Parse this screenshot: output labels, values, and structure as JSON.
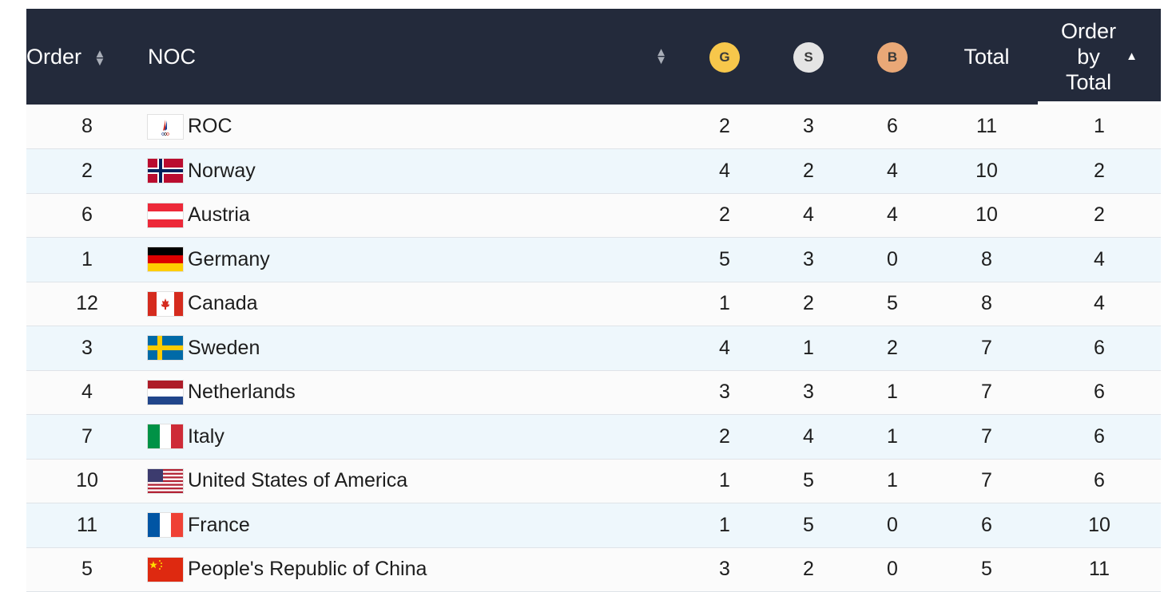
{
  "header": {
    "order": "Order",
    "noc": "NOC",
    "gold": "G",
    "silver": "S",
    "bronze": "B",
    "total": "Total",
    "order_by_total": [
      "Order",
      "by",
      "Total"
    ],
    "sort_icon": "sort-both-icon",
    "active_sort_icon": "sort-ascending-icon"
  },
  "colors": {
    "header_bg": "#232a3b",
    "gold": "#f7c74b",
    "silver": "#e4e4e4",
    "bronze": "#e9a877",
    "row_odd": "#fbfbfb",
    "row_even": "#eef7fc"
  },
  "rows": [
    {
      "order": "8",
      "flag": "roc-flag",
      "noc": "ROC",
      "gold": "2",
      "silver": "3",
      "bronze": "6",
      "total": "11",
      "order_by_total": "1"
    },
    {
      "order": "2",
      "flag": "norway-flag",
      "noc": "Norway",
      "gold": "4",
      "silver": "2",
      "bronze": "4",
      "total": "10",
      "order_by_total": "2"
    },
    {
      "order": "6",
      "flag": "austria-flag",
      "noc": "Austria",
      "gold": "2",
      "silver": "4",
      "bronze": "4",
      "total": "10",
      "order_by_total": "2"
    },
    {
      "order": "1",
      "flag": "germany-flag",
      "noc": "Germany",
      "gold": "5",
      "silver": "3",
      "bronze": "0",
      "total": "8",
      "order_by_total": "4"
    },
    {
      "order": "12",
      "flag": "canada-flag",
      "noc": "Canada",
      "gold": "1",
      "silver": "2",
      "bronze": "5",
      "total": "8",
      "order_by_total": "4"
    },
    {
      "order": "3",
      "flag": "sweden-flag",
      "noc": "Sweden",
      "gold": "4",
      "silver": "1",
      "bronze": "2",
      "total": "7",
      "order_by_total": "6"
    },
    {
      "order": "4",
      "flag": "netherlands-flag",
      "noc": "Netherlands",
      "gold": "3",
      "silver": "3",
      "bronze": "1",
      "total": "7",
      "order_by_total": "6"
    },
    {
      "order": "7",
      "flag": "italy-flag",
      "noc": "Italy",
      "gold": "2",
      "silver": "4",
      "bronze": "1",
      "total": "7",
      "order_by_total": "6"
    },
    {
      "order": "10",
      "flag": "usa-flag",
      "noc": "United States of America",
      "gold": "1",
      "silver": "5",
      "bronze": "1",
      "total": "7",
      "order_by_total": "6"
    },
    {
      "order": "11",
      "flag": "france-flag",
      "noc": "France",
      "gold": "1",
      "silver": "5",
      "bronze": "0",
      "total": "6",
      "order_by_total": "10"
    },
    {
      "order": "5",
      "flag": "china-flag",
      "noc": "People's Republic of China",
      "gold": "3",
      "silver": "2",
      "bronze": "0",
      "total": "5",
      "order_by_total": "11"
    }
  ]
}
